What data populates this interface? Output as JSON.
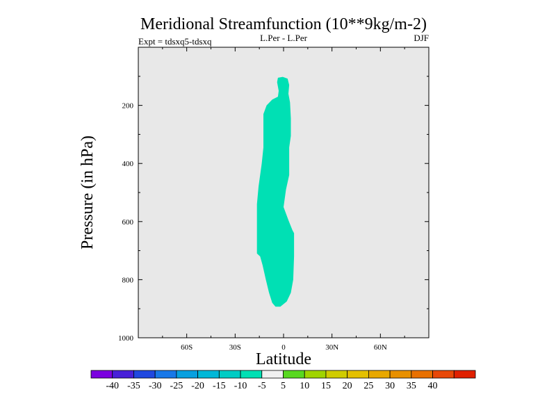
{
  "chart_data": {
    "type": "contour",
    "title": "Meridional Streamfunction (10**9kg/m-2)",
    "left_subtitle": "Expt = tdsxq5-tdsxq",
    "center_subtitle": "L.Per - L.Per",
    "right_subtitle": "DJF",
    "xlabel": "Latitude",
    "ylabel": "Pressure (in hPa)",
    "xlim": [
      -90,
      90
    ],
    "ylim": [
      1000,
      0
    ],
    "x_major_ticks": [
      -60,
      -30,
      0,
      30,
      60
    ],
    "x_tick_labels": [
      "60S",
      "30S",
      "0",
      "30N",
      "60N"
    ],
    "x_minor_ticks": [
      -75,
      -45,
      -15,
      15,
      45,
      75
    ],
    "y_major_ticks": [
      200,
      400,
      600,
      800,
      1000
    ],
    "y_tick_labels": [
      "200",
      "400",
      "600",
      "800",
      "1000"
    ],
    "y_minor_ticks": [
      100,
      300,
      500,
      700,
      900
    ],
    "background_color": "#e8e8e8",
    "region": {
      "value_range": "-10 to -5",
      "color": "#00e0b4",
      "boundary": [
        [
          -3.5,
          105
        ],
        [
          -0.5,
          102
        ],
        [
          2.5,
          108
        ],
        [
          3.5,
          130
        ],
        [
          3,
          160
        ],
        [
          4,
          190
        ],
        [
          4.5,
          245
        ],
        [
          4.5,
          305
        ],
        [
          3.5,
          345
        ],
        [
          3.5,
          410
        ],
        [
          3.5,
          440
        ],
        [
          1.5,
          490
        ],
        [
          0,
          550
        ],
        [
          3,
          595
        ],
        [
          5.5,
          630
        ],
        [
          6.5,
          640
        ],
        [
          6.5,
          720
        ],
        [
          6,
          800
        ],
        [
          4.5,
          845
        ],
        [
          2,
          875
        ],
        [
          -2,
          893
        ],
        [
          -5,
          893
        ],
        [
          -7,
          880
        ],
        [
          -9,
          845
        ],
        [
          -11,
          800
        ],
        [
          -13,
          750
        ],
        [
          -14.5,
          720
        ],
        [
          -16.5,
          710
        ],
        [
          -16.5,
          640
        ],
        [
          -16.5,
          540
        ],
        [
          -15.5,
          480
        ],
        [
          -13.5,
          400
        ],
        [
          -12.5,
          345
        ],
        [
          -12.5,
          230
        ],
        [
          -10.5,
          200
        ],
        [
          -7,
          180
        ],
        [
          -3.5,
          170
        ],
        [
          -3,
          150
        ],
        [
          -4,
          120
        ]
      ]
    },
    "colorbar": {
      "colors": [
        "#7b00e0",
        "#4820d8",
        "#2048e0",
        "#1878e8",
        "#08a0e0",
        "#00b8d8",
        "#00ccc4",
        "#00e0b4",
        "#f0f0f0",
        "#58d820",
        "#a0d400",
        "#d0cc00",
        "#e4c000",
        "#e8a800",
        "#e89000",
        "#e87000",
        "#e84808",
        "#e02000"
      ],
      "labels": [
        "-40",
        "-35",
        "-30",
        "-25",
        "-20",
        "-15",
        "-10",
        "-5",
        "5",
        "10",
        "15",
        "20",
        "25",
        "30",
        "35",
        "40"
      ]
    }
  }
}
